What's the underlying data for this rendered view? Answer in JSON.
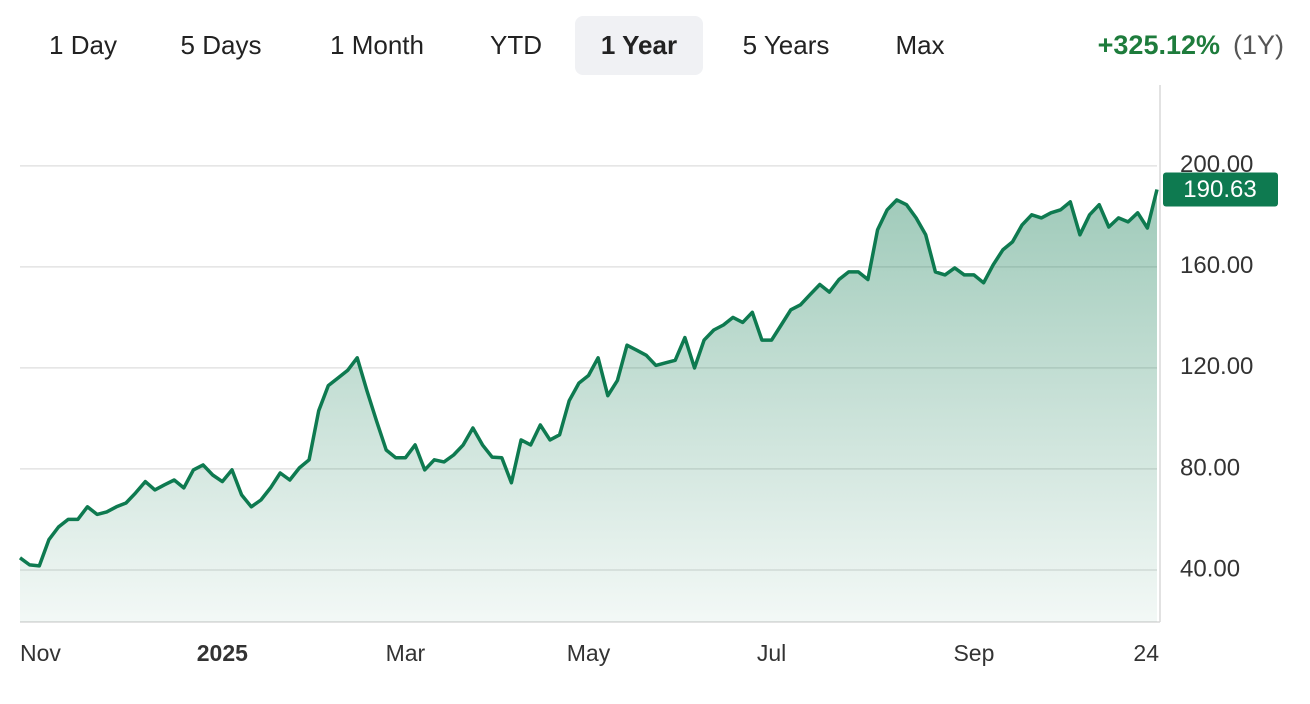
{
  "tabs": [
    {
      "label": "1 Day",
      "selected": false
    },
    {
      "label": "5 Days",
      "selected": false
    },
    {
      "label": "1 Month",
      "selected": false
    },
    {
      "label": "YTD",
      "selected": false
    },
    {
      "label": "1 Year",
      "selected": true
    },
    {
      "label": "5 Years",
      "selected": false
    },
    {
      "label": "Max",
      "selected": false
    }
  ],
  "change": "+325.12%",
  "change_period": "(1Y)",
  "chart_data": {
    "type": "area",
    "color": "#0e7a50",
    "grid": true,
    "ylim": [
      19.4,
      232
    ],
    "yticks": [
      {
        "value": 40,
        "label": "40.00"
      },
      {
        "value": 80,
        "label": "80.00"
      },
      {
        "value": 120,
        "label": "120.00"
      },
      {
        "value": 160,
        "label": "160.00"
      },
      {
        "value": 200,
        "label": "200.00"
      }
    ],
    "categories": [
      "Nov",
      null,
      null,
      null,
      null,
      null,
      null,
      null,
      null,
      null,
      null,
      null,
      null,
      null,
      null,
      null,
      null,
      null,
      null,
      null,
      null,
      "2025",
      null,
      null,
      null,
      null,
      null,
      null,
      null,
      null,
      null,
      null,
      null,
      null,
      null,
      null,
      null,
      null,
      null,
      null,
      "Mar",
      null,
      null,
      null,
      null,
      null,
      null,
      null,
      null,
      null,
      null,
      null,
      null,
      null,
      null,
      null,
      null,
      null,
      null,
      "May",
      null,
      null,
      null,
      null,
      null,
      null,
      null,
      null,
      null,
      null,
      null,
      null,
      null,
      null,
      null,
      null,
      null,
      null,
      "Jul",
      null,
      null,
      null,
      null,
      null,
      null,
      null,
      null,
      null,
      null,
      null,
      null,
      null,
      null,
      null,
      null,
      null,
      null,
      null,
      null,
      "Sep",
      null,
      null,
      null,
      null,
      null,
      null,
      null,
      null,
      null,
      null,
      null,
      null,
      null,
      null,
      null,
      null,
      null,
      null,
      "24"
    ],
    "values": [
      44.8,
      42,
      41.6,
      52,
      57,
      60,
      60,
      65,
      62,
      63,
      65,
      66.5,
      70.5,
      75,
      71.7,
      73.7,
      75.6,
      72.5,
      79.6,
      81.6,
      77.6,
      75,
      79.6,
      69.7,
      65,
      67.7,
      72.5,
      78.4,
      75.6,
      80.4,
      83.6,
      103,
      113,
      116,
      119,
      124,
      111,
      99,
      87.5,
      84.4,
      84.4,
      89.5,
      79.6,
      83.6,
      82.8,
      85.5,
      89.5,
      96.2,
      89.5,
      84.7,
      84.4,
      74.5,
      91.5,
      89.5,
      97.4,
      91.5,
      93.5,
      107,
      114,
      117,
      124,
      109,
      115,
      129,
      127,
      125,
      121,
      122,
      123,
      132,
      120,
      131,
      135,
      137,
      140,
      138,
      142,
      131,
      131,
      137,
      143,
      145,
      149,
      153,
      150,
      155,
      158,
      158,
      155,
      174.7,
      182.6,
      186.5,
      184.6,
      179.4,
      172.7,
      158,
      156.8,
      159.6,
      156.8,
      156.8,
      153.7,
      160.8,
      166.7,
      169.9,
      176.6,
      180.6,
      179.4,
      181.4,
      182.6,
      185.7,
      172.7,
      180.6,
      184.6,
      175.8,
      179.4,
      177.8,
      181.4,
      175.4,
      190.63
    ]
  }
}
